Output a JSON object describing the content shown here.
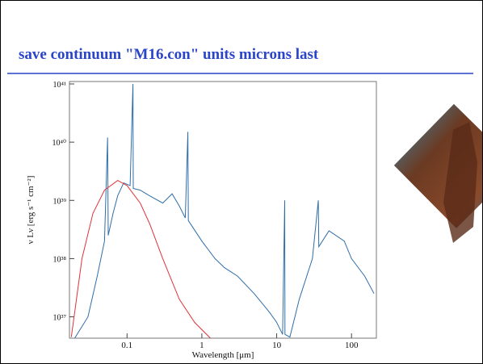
{
  "slide": {
    "title": "save continuum \"M16.con\" units microns last"
  },
  "chart_data": {
    "type": "line",
    "log_x": true,
    "log_y": true,
    "x_label": "Wavelength [μm]",
    "y_label": "ν Lν [erg s⁻¹ cm⁻²]",
    "xlim": [
      0.017,
      215
    ],
    "ylim": [
      4.3e+36,
      1.1e+41
    ],
    "xticks": [
      0.1,
      1,
      10,
      100
    ],
    "yticks": [
      {
        "value": 1e+37,
        "label": "10³⁷"
      },
      {
        "value": 1e+38,
        "label": "10³⁸"
      },
      {
        "value": 1e+39,
        "label": "10³⁹"
      },
      {
        "value": 1e+40,
        "label": "10⁴⁰"
      },
      {
        "value": 1e+41,
        "label": "10⁴¹"
      }
    ],
    "series": [
      {
        "color": "#2f6ea8",
        "x": [
          0.02,
          0.03,
          0.04,
          0.05,
          0.055,
          0.056,
          0.065,
          0.075,
          0.09,
          0.11,
          0.12,
          0.121,
          0.15,
          0.2,
          0.3,
          0.4,
          0.5,
          0.6,
          0.65,
          0.66,
          1,
          1.5,
          2,
          3,
          5,
          8,
          10,
          12,
          12.8,
          12.9,
          15,
          20,
          30,
          36,
          36.5,
          50,
          80,
          100,
          150,
          200
        ],
        "values": [
          4.3e+36,
          1e+37,
          5e+37,
          2e+38,
          1.2e+40,
          2.5e+38,
          6e+38,
          1.2e+39,
          2e+39,
          1.8e+39,
          1e+41,
          1.6e+39,
          1.5e+39,
          1.2e+39,
          9e+38,
          1.3e+39,
          8e+38,
          5e+38,
          1.5e+40,
          4.5e+38,
          2e+38,
          1e+38,
          7e+37,
          5e+37,
          2.5e+37,
          1.2e+37,
          8e+36,
          5e+36,
          1e+39,
          5e+36,
          4.5e+36,
          2e+37,
          1e+38,
          1e+39,
          1.6e+38,
          3e+38,
          2e+38,
          1e+38,
          5e+37,
          2.5e+37
        ]
      },
      {
        "color": "#e0333a",
        "x": [
          0.018,
          0.025,
          0.035,
          0.05,
          0.075,
          0.1,
          0.15,
          0.2,
          0.3,
          0.5,
          0.8,
          1.3
        ],
        "values": [
          4.5e+36,
          1e+38,
          6e+38,
          1.5e+39,
          2.2e+39,
          1.8e+39,
          9e+38,
          4e+38,
          1e+38,
          2e+37,
          8e+36,
          4.3e+36
        ]
      }
    ]
  }
}
